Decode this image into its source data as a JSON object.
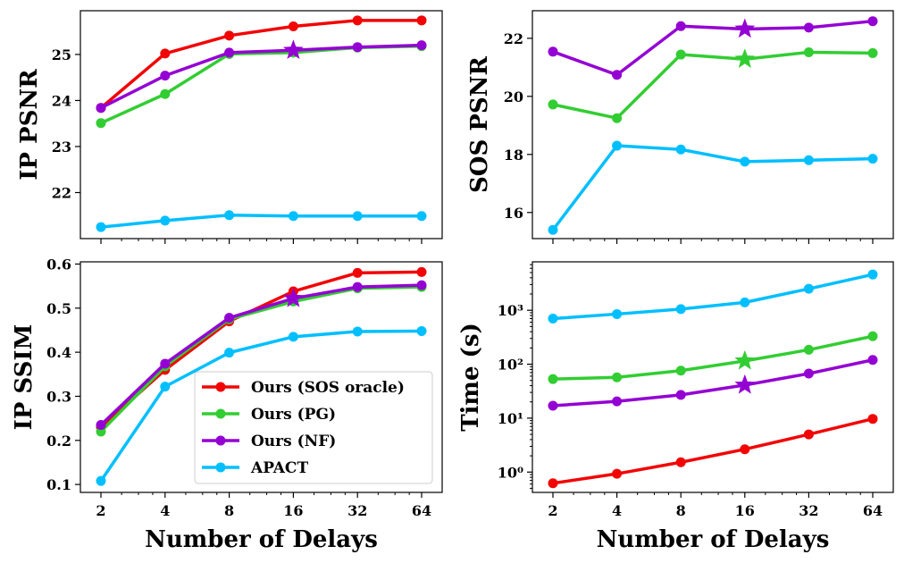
{
  "colors": {
    "sos_oracle": "#f20505",
    "pg": "#32cd32",
    "nf": "#9400d3",
    "apact": "#00bfff"
  },
  "legend": {
    "entries": [
      {
        "key": "sos_oracle",
        "label": "Ours (SOS oracle)"
      },
      {
        "key": "pg",
        "label": "Ours (PG)"
      },
      {
        "key": "nf",
        "label": "Ours (NF)"
      },
      {
        "key": "apact",
        "label": "APACT"
      }
    ],
    "placement": "lower-right of IP SSIM panel"
  },
  "chart_data": [
    {
      "id": "ip_psnr",
      "type": "line",
      "ylabel": "IP PSNR",
      "xlabel": "",
      "x": [
        2,
        4,
        8,
        16,
        32,
        64
      ],
      "x_scale": "log2",
      "xtick_labels": [
        "2",
        "4",
        "8",
        "16",
        "32",
        "64"
      ],
      "ylim": [
        21.0,
        25.95
      ],
      "yticks": [
        22,
        23,
        24,
        25
      ],
      "ytick_labels": [
        "22",
        "23",
        "24",
        "25"
      ],
      "series": [
        {
          "key": "sos_oracle",
          "name": "Ours (SOS oracle)",
          "values": [
            23.84,
            25.02,
            25.41,
            25.61,
            25.74,
            25.74
          ]
        },
        {
          "key": "pg",
          "name": "Ours (PG)",
          "values": [
            23.51,
            24.14,
            25.01,
            25.04,
            25.15,
            25.18
          ]
        },
        {
          "key": "nf",
          "name": "Ours (NF)",
          "values": [
            23.84,
            24.54,
            25.04,
            25.09,
            25.16,
            25.2
          ]
        },
        {
          "key": "apact",
          "name": "APACT",
          "values": [
            21.25,
            21.39,
            21.51,
            21.49,
            21.49,
            21.49
          ]
        }
      ],
      "stars": [
        {
          "key": "nf",
          "x": 16,
          "y": 25.09
        }
      ]
    },
    {
      "id": "sos_psnr",
      "type": "line",
      "ylabel": "SOS PSNR",
      "xlabel": "",
      "x": [
        2,
        4,
        8,
        16,
        32,
        64
      ],
      "x_scale": "log2",
      "xtick_labels": [
        "2",
        "4",
        "8",
        "16",
        "32",
        "64"
      ],
      "ylim": [
        15.1,
        22.95
      ],
      "yticks": [
        16,
        18,
        20,
        22
      ],
      "ytick_labels": [
        "16",
        "18",
        "20",
        "22"
      ],
      "series": [
        {
          "key": "pg",
          "name": "Ours (PG)",
          "values": [
            19.72,
            19.25,
            21.44,
            21.28,
            21.52,
            21.49
          ]
        },
        {
          "key": "nf",
          "name": "Ours (NF)",
          "values": [
            21.54,
            20.74,
            22.42,
            22.32,
            22.37,
            22.59
          ]
        },
        {
          "key": "apact",
          "name": "APACT",
          "values": [
            15.4,
            18.3,
            18.17,
            17.75,
            17.8,
            17.85
          ]
        }
      ],
      "stars": [
        {
          "key": "nf",
          "x": 16,
          "y": 22.32
        },
        {
          "key": "pg",
          "x": 16,
          "y": 21.28
        }
      ]
    },
    {
      "id": "ip_ssim",
      "type": "line",
      "ylabel": "IP SSIM",
      "xlabel": "Number of Delays",
      "x": [
        2,
        4,
        8,
        16,
        32,
        64
      ],
      "x_scale": "log2",
      "xtick_labels": [
        "2",
        "4",
        "8",
        "16",
        "32",
        "64"
      ],
      "ylim": [
        0.082,
        0.605
      ],
      "yticks": [
        0.1,
        0.2,
        0.3,
        0.4,
        0.5,
        0.6
      ],
      "ytick_labels": [
        "0.1",
        "0.2",
        "0.3",
        "0.4",
        "0.5",
        "0.6"
      ],
      "series": [
        {
          "key": "sos_oracle",
          "name": "Ours (SOS oracle)",
          "values": [
            0.23,
            0.36,
            0.47,
            0.538,
            0.58,
            0.582
          ]
        },
        {
          "key": "pg",
          "name": "Ours (PG)",
          "values": [
            0.22,
            0.368,
            0.475,
            0.515,
            0.545,
            0.548
          ]
        },
        {
          "key": "nf",
          "name": "Ours (NF)",
          "values": [
            0.235,
            0.374,
            0.478,
            0.522,
            0.548,
            0.552
          ]
        },
        {
          "key": "apact",
          "name": "APACT",
          "values": [
            0.108,
            0.322,
            0.399,
            0.435,
            0.447,
            0.448
          ]
        }
      ],
      "stars": [
        {
          "key": "nf",
          "x": 16,
          "y": 0.522
        }
      ]
    },
    {
      "id": "time",
      "type": "line",
      "ylabel": "Time (s)",
      "xlabel": "Number of Delays",
      "x": [
        2,
        4,
        8,
        16,
        32,
        64
      ],
      "x_scale": "log2",
      "y_scale": "log10",
      "xtick_labels": [
        "2",
        "4",
        "8",
        "16",
        "32",
        "64"
      ],
      "ylim": [
        0.42,
        7900
      ],
      "yticks": [
        1,
        10,
        100,
        1000
      ],
      "ytick_labels": [
        "10⁰",
        "10¹",
        "10²",
        "10³"
      ],
      "series": [
        {
          "key": "sos_oracle",
          "name": "Ours (SOS oracle)",
          "values": [
            0.62,
            0.93,
            1.52,
            2.65,
            5.0,
            9.7
          ]
        },
        {
          "key": "pg",
          "name": "Ours (PG)",
          "values": [
            53,
            57,
            76,
            115,
            185,
            330
          ]
        },
        {
          "key": "nf",
          "name": "Ours (NF)",
          "values": [
            17,
            20.5,
            27,
            41,
            67,
            120
          ]
        },
        {
          "key": "apact",
          "name": "APACT",
          "values": [
            700,
            850,
            1050,
            1400,
            2500,
            4600
          ]
        }
      ],
      "stars": [
        {
          "key": "pg",
          "x": 16,
          "y": 115
        },
        {
          "key": "nf",
          "x": 16,
          "y": 41
        }
      ]
    }
  ]
}
